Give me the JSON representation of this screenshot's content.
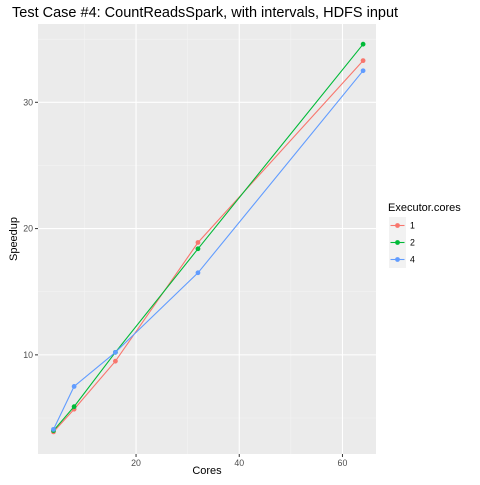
{
  "chart_data": {
    "type": "line",
    "title": "Test Case #4: CountReadsSpark, with intervals, HDFS input",
    "xlabel": "Cores",
    "ylabel": "Speedup",
    "xlim": [
      1,
      66.5
    ],
    "ylim": [
      2.15,
      36.2
    ],
    "x_ticks": [
      20,
      40,
      60
    ],
    "y_ticks": [
      10,
      20,
      30
    ],
    "grid": true,
    "legend": {
      "title": "Executor.cores",
      "position": "right"
    },
    "x": [
      4,
      8,
      16,
      32,
      64
    ],
    "series": [
      {
        "name": "1",
        "color": "#f8766d",
        "values": [
          3.9,
          5.7,
          9.5,
          18.9,
          33.3
        ]
      },
      {
        "name": "2",
        "color": "#00ba38",
        "values": [
          4.0,
          5.9,
          10.2,
          18.4,
          34.6
        ]
      },
      {
        "name": "4",
        "color": "#619cff",
        "values": [
          4.1,
          7.5,
          10.2,
          16.5,
          32.5
        ]
      }
    ]
  }
}
